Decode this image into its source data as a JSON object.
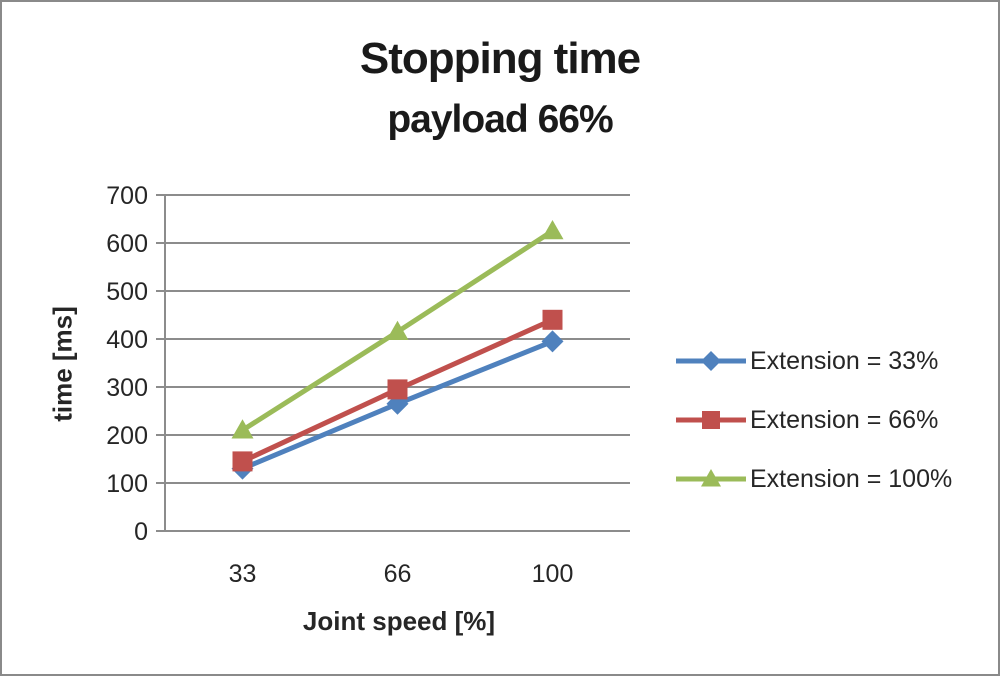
{
  "chart_data": {
    "type": "line",
    "title": "Stopping time",
    "subtitle": "payload 66%",
    "xlabel": "Joint speed [%]",
    "ylabel": "time [ms]",
    "x_categories": [
      "33",
      "66",
      "100"
    ],
    "ylim": [
      0,
      700
    ],
    "ytick_step": 100,
    "yticks": [
      "0",
      "100",
      "200",
      "300",
      "400",
      "500",
      "600",
      "700"
    ],
    "grid": true,
    "legend_position": "right",
    "series": [
      {
        "name": "Extension = 33%",
        "marker": "diamond",
        "color": "#4F81BD",
        "values": [
          130,
          265,
          395
        ]
      },
      {
        "name": "Extension = 66%",
        "marker": "square",
        "color": "#C0504D",
        "values": [
          145,
          295,
          440
        ]
      },
      {
        "name": "Extension = 100%",
        "marker": "triangle",
        "color": "#9BBB59",
        "values": [
          210,
          415,
          625
        ]
      }
    ],
    "colors": {
      "axis": "#8c8c8c",
      "grid": "#8c8c8c",
      "text": "#262626",
      "border": "#8a8a8a"
    }
  }
}
